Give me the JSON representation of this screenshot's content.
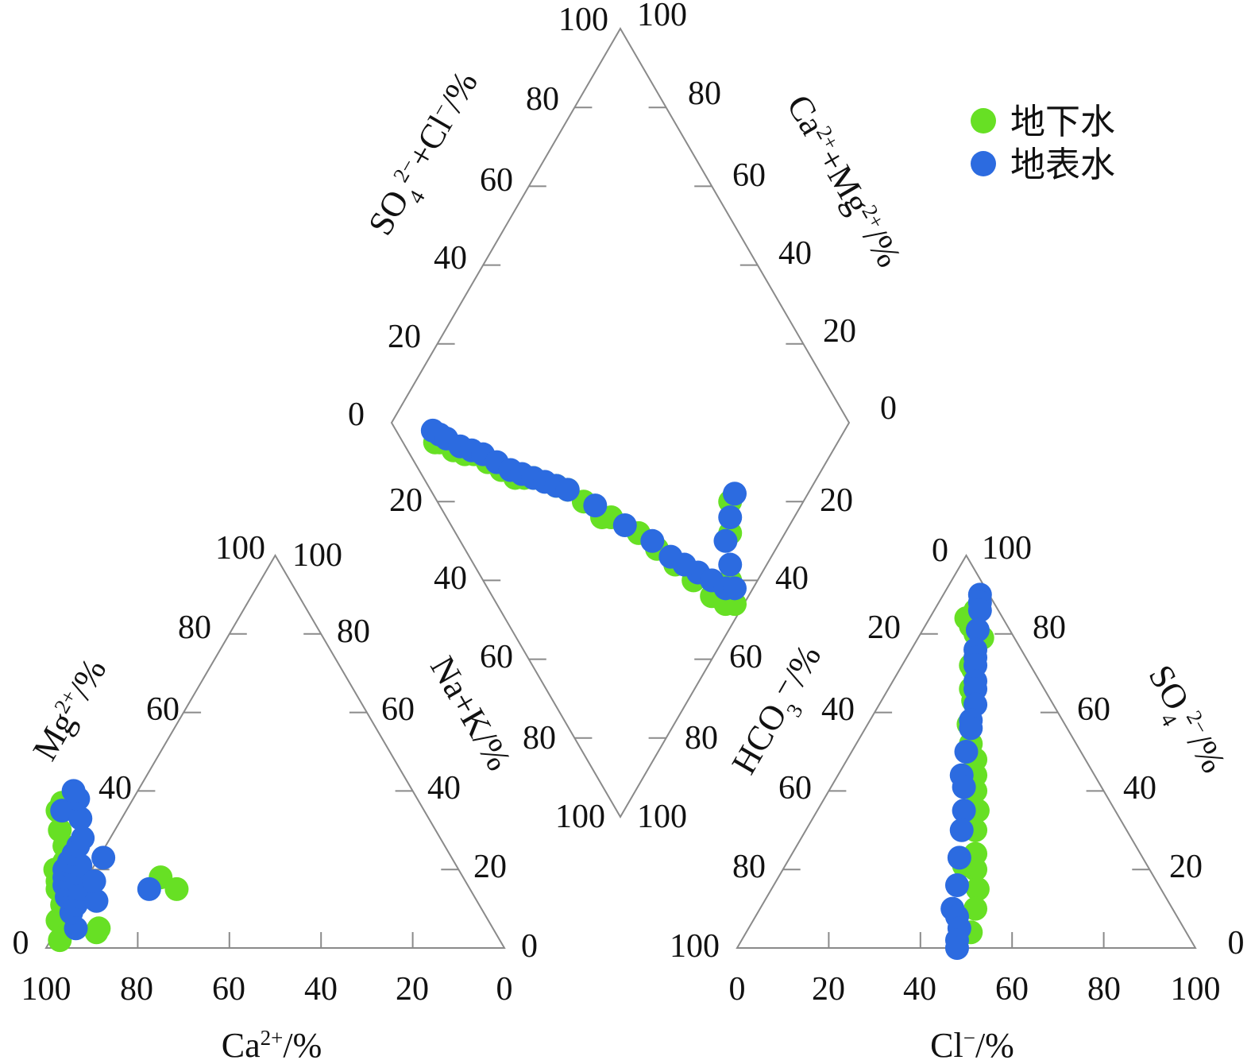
{
  "chart_data": {
    "type": "scatter",
    "subtype": "piper-diagram",
    "legend_position": "top-right",
    "series": [
      {
        "name": "地下水",
        "color": "#67e024"
      },
      {
        "name": "地表水",
        "color": "#2c6be0"
      }
    ],
    "axis_text": {
      "cation_x": [
        "Ca",
        "2+",
        "/%"
      ],
      "cation_left": [
        "Mg",
        "2+",
        "/%"
      ],
      "cation_right": "Na+K/%",
      "anion_x": [
        "Cl",
        "−",
        "/%"
      ],
      "anion_left": [
        "HCO",
        "3",
        "⁻/%"
      ],
      "anion_right": [
        "SO",
        "4",
        "2−",
        "/%"
      ],
      "diamond_left": [
        "SO",
        "4",
        "2−",
        "+Cl",
        "−",
        "/%"
      ],
      "diamond_right": [
        "Ca",
        "2+",
        "+Mg",
        "2+",
        "/%"
      ]
    },
    "ticks": {
      "cation_x": [
        "100",
        "80",
        "60",
        "40",
        "20",
        "0"
      ],
      "cation_left": [
        "0",
        "20",
        "40",
        "60",
        "80",
        "100"
      ],
      "cation_right": [
        "100",
        "80",
        "60",
        "40",
        "20",
        "0"
      ],
      "anion_x": [
        "0",
        "20",
        "40",
        "60",
        "80",
        "100"
      ],
      "anion_left": [
        "100",
        "80",
        "60",
        "40",
        "20",
        "0"
      ],
      "anion_right": [
        "0",
        "20",
        "40",
        "60",
        "80",
        "100"
      ],
      "diamond_upper_left": [
        "0",
        "20",
        "40",
        "60",
        "80",
        "100"
      ],
      "diamond_upper_right": [
        "0",
        "20",
        "40",
        "60",
        "80",
        "100"
      ],
      "diamond_lower_left": [
        "20",
        "40",
        "60",
        "80",
        "100"
      ],
      "diamond_lower_right": [
        "20",
        "40",
        "60",
        "80",
        "100"
      ]
    },
    "cation_points": {
      "groundwater": [
        [
          96,
          2
        ],
        [
          94,
          7
        ],
        [
          92,
          8
        ],
        [
          91,
          11
        ],
        [
          90,
          15
        ],
        [
          89,
          17
        ],
        [
          88,
          20
        ],
        [
          87,
          12
        ],
        [
          87,
          4
        ],
        [
          86,
          5
        ],
        [
          86,
          15
        ],
        [
          85,
          22
        ],
        [
          84,
          18
        ],
        [
          83,
          26
        ],
        [
          82,
          30
        ],
        [
          80,
          35
        ],
        [
          78,
          37
        ],
        [
          66,
          18
        ],
        [
          64,
          15
        ]
      ],
      "surfacewater": [
        [
          91,
          5
        ],
        [
          90,
          9
        ],
        [
          89,
          13
        ],
        [
          88,
          11
        ],
        [
          88,
          16
        ],
        [
          87,
          18
        ],
        [
          86,
          13
        ],
        [
          86,
          20
        ],
        [
          85,
          15
        ],
        [
          84,
          19
        ],
        [
          84,
          22
        ],
        [
          83,
          12
        ],
        [
          82,
          21
        ],
        [
          82,
          24
        ],
        [
          81,
          17
        ],
        [
          80,
          26
        ],
        [
          79,
          35
        ],
        [
          78,
          28
        ],
        [
          76,
          33
        ],
        [
          76,
          23
        ],
        [
          74,
          38
        ],
        [
          74,
          40
        ],
        [
          70,
          15
        ]
      ]
    },
    "anion_points": {
      "groundwater": [
        [
          8,
          84
        ],
        [
          9,
          86
        ],
        [
          10,
          82
        ],
        [
          12,
          80
        ],
        [
          14,
          79
        ],
        [
          15,
          72
        ],
        [
          16,
          71
        ],
        [
          18,
          66
        ],
        [
          20,
          63
        ],
        [
          22,
          57
        ],
        [
          25,
          52
        ],
        [
          28,
          48
        ],
        [
          30,
          44
        ],
        [
          32,
          40
        ],
        [
          35,
          35
        ],
        [
          37,
          30
        ],
        [
          40,
          24
        ],
        [
          42,
          20
        ],
        [
          45,
          15
        ],
        [
          47,
          10
        ],
        [
          49,
          4
        ],
        [
          39,
          21
        ]
      ],
      "surfacewater": [
        [
          8,
          90
        ],
        [
          9,
          88
        ],
        [
          10,
          86
        ],
        [
          12,
          81
        ],
        [
          14,
          76
        ],
        [
          15,
          74
        ],
        [
          16,
          72
        ],
        [
          18,
          68
        ],
        [
          19,
          66
        ],
        [
          21,
          62
        ],
        [
          22,
          58
        ],
        [
          23,
          56
        ],
        [
          25,
          50
        ],
        [
          27,
          44
        ],
        [
          29,
          41
        ],
        [
          32,
          35
        ],
        [
          34,
          30
        ],
        [
          37,
          23
        ],
        [
          40,
          16
        ],
        [
          42,
          10
        ],
        [
          44,
          8
        ],
        [
          46,
          5
        ],
        [
          47,
          2
        ],
        [
          48,
          0
        ]
      ]
    },
    "diamond_points": {
      "groundwater": [
        [
          7,
          12
        ],
        [
          8,
          13
        ],
        [
          10,
          17
        ],
        [
          12,
          20
        ],
        [
          14,
          22
        ],
        [
          16,
          26
        ],
        [
          18,
          30
        ],
        [
          20,
          34
        ],
        [
          22,
          36
        ],
        [
          24,
          38
        ],
        [
          28,
          44
        ],
        [
          32,
          52
        ],
        [
          36,
          60
        ],
        [
          40,
          68
        ],
        [
          42,
          74
        ],
        [
          44,
          80
        ],
        [
          46,
          86
        ],
        [
          48,
          92
        ],
        [
          50,
          96
        ],
        [
          52,
          98
        ],
        [
          54,
          94
        ],
        [
          60,
          88
        ],
        [
          64,
          84
        ],
        [
          34,
          58
        ],
        [
          30,
          47
        ]
      ],
      "surfacewater": [
        [
          8,
          10
        ],
        [
          9,
          12
        ],
        [
          10,
          14
        ],
        [
          12,
          18
        ],
        [
          14,
          21
        ],
        [
          16,
          24
        ],
        [
          18,
          28
        ],
        [
          20,
          32
        ],
        [
          22,
          35
        ],
        [
          24,
          38
        ],
        [
          26,
          41
        ],
        [
          28,
          44
        ],
        [
          30,
          47
        ],
        [
          34,
          55
        ],
        [
          38,
          64
        ],
        [
          42,
          72
        ],
        [
          44,
          78
        ],
        [
          48,
          86
        ],
        [
          50,
          90
        ],
        [
          52,
          94
        ],
        [
          54,
          96
        ],
        [
          56,
          92
        ],
        [
          58,
          88
        ],
        [
          62,
          86
        ],
        [
          66,
          84
        ],
        [
          46,
          82
        ]
      ]
    }
  }
}
